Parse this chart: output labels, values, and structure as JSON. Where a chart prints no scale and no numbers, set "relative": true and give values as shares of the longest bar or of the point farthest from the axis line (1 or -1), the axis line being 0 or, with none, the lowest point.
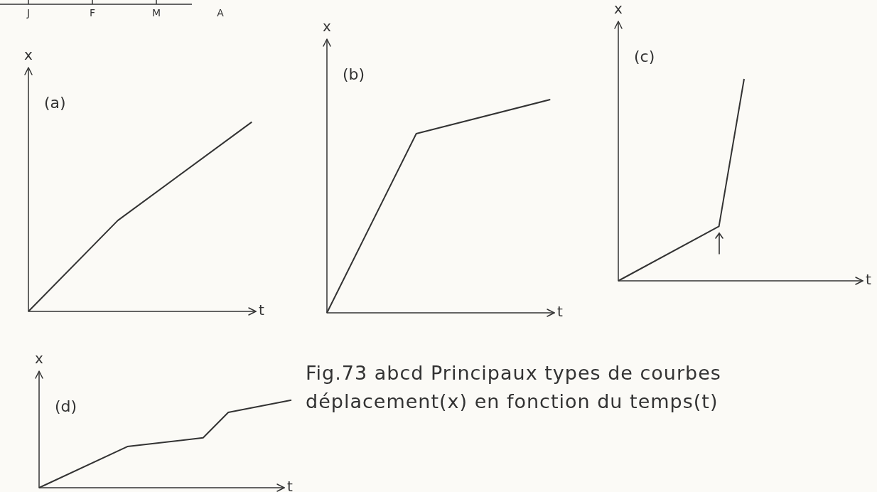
{
  "chart_data": [
    {
      "type": "other",
      "categories": [
        "J",
        "F",
        "M",
        "A"
      ]
    },
    {
      "type": "line",
      "relative": true,
      "title": "(a)",
      "xlabel": "t",
      "ylabel": "x",
      "categories": [
        null,
        null,
        null,
        null,
        null,
        null,
        null,
        null,
        null,
        null,
        null,
        null,
        null,
        null,
        null,
        null,
        null,
        null,
        null,
        null,
        null,
        null
      ],
      "series": [
        {
          "color": "#333333",
          "values": [
            0,
            null,
            null,
            null,
            null,
            null,
            null,
            null,
            0.48,
            null,
            null,
            null,
            null,
            null,
            null,
            null,
            null,
            null,
            null,
            null,
            1,
            null
          ]
        }
      ]
    },
    {
      "type": "line",
      "relative": true,
      "title": "(b)",
      "xlabel": "t",
      "ylabel": "x",
      "categories": [
        null,
        null,
        null,
        null,
        null,
        null,
        null,
        null,
        null,
        null,
        null,
        null,
        null,
        null,
        null,
        null,
        null,
        null,
        null,
        null,
        null,
        null
      ],
      "series": [
        {
          "color": "#333333",
          "values": [
            0,
            null,
            null,
            null,
            null,
            null,
            null,
            null,
            0.84,
            null,
            null,
            null,
            null,
            null,
            null,
            null,
            null,
            null,
            null,
            null,
            1,
            null
          ]
        }
      ]
    },
    {
      "type": "line",
      "relative": true,
      "title": "(c)",
      "xlabel": "t",
      "ylabel": "x",
      "categories": [
        null,
        null,
        null,
        null,
        null,
        null,
        null,
        null,
        null,
        null,
        null,
        null,
        null,
        null,
        null,
        null,
        null,
        null,
        null,
        null,
        null
      ],
      "series": [
        {
          "color": "#333333",
          "values": [
            0,
            null,
            null,
            null,
            null,
            null,
            null,
            null,
            0.27,
            null,
            1,
            null,
            null,
            null,
            null,
            null,
            null,
            null,
            null,
            null,
            null
          ]
        }
      ]
    },
    {
      "type": "line",
      "relative": true,
      "title": "(d)",
      "xlabel": "t",
      "ylabel": "x",
      "categories": [
        null,
        null,
        null,
        null,
        null,
        null,
        null,
        null,
        null,
        null,
        null,
        null,
        null,
        null,
        null,
        null,
        null,
        null,
        null,
        null,
        null
      ],
      "series": [
        {
          "color": "#333333",
          "values": [
            0,
            null,
            null,
            null,
            null,
            null,
            null,
            0.47,
            null,
            null,
            null,
            null,
            null,
            0.57,
            null,
            0.86,
            null,
            null,
            null,
            null,
            1
          ]
        }
      ]
    },
    {
      "type": "other",
      "annotations": [
        "Fig.73 abcd Principaux types de courbes déplacement(x) en fonction du temps(t)"
      ]
    }
  ]
}
